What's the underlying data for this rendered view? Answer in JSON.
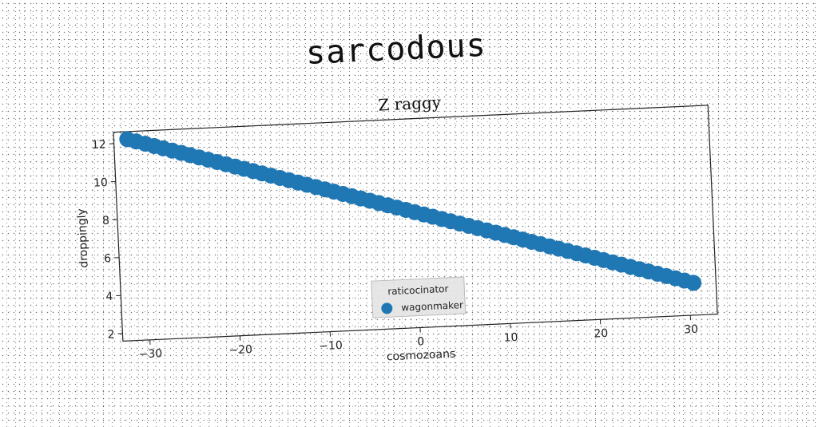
{
  "page": {
    "main_title": "sarcodous"
  },
  "chart_data": {
    "type": "scatter",
    "title": "Z raggy",
    "xlabel": "cosmozoans",
    "ylabel": "droppingly",
    "xlim": [
      -33,
      33
    ],
    "ylim": [
      1.6,
      12.6
    ],
    "xticks": [
      -30,
      -20,
      -10,
      0,
      10,
      20,
      30
    ],
    "xtick_labels": [
      "−30",
      "−20",
      "−10",
      "0",
      "10",
      "20",
      "30"
    ],
    "yticks": [
      2,
      4,
      6,
      8,
      10,
      12
    ],
    "ytick_labels": [
      "2",
      "4",
      "6",
      "8",
      "10",
      "12"
    ],
    "grid": false,
    "legend": {
      "title": "raticocinator",
      "placement": "lower center"
    },
    "series": [
      {
        "name": "wagonmaker",
        "color": "#1f77b4",
        "x_start": -31.5,
        "x_end": 30.5,
        "y_start": 12.2,
        "y_end": 3.3,
        "count": 64
      }
    ]
  }
}
